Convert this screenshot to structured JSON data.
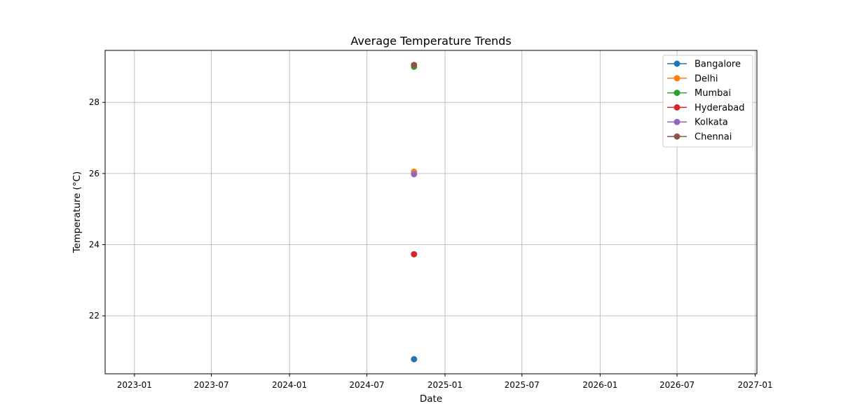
{
  "chart_data": {
    "type": "line",
    "title": "Average Temperature Trends",
    "xlabel": "Date",
    "ylabel": "Temperature (°C)",
    "x_ticks": [
      "2023-01",
      "2023-07",
      "2024-01",
      "2024-07",
      "2025-01",
      "2025-07",
      "2026-01",
      "2026-07",
      "2027-01"
    ],
    "y_ticks": [
      "22",
      "24",
      "26",
      "28"
    ],
    "xlim": [
      "2022-10-24",
      "2027-01-05"
    ],
    "ylim": [
      20.37,
      29.46
    ],
    "grid": true,
    "legend_position": "top-right",
    "series": [
      {
        "name": "Bangalore",
        "color": "#1f77b4",
        "points": [
          {
            "x": "2024-10-20",
            "y": 20.78
          }
        ]
      },
      {
        "name": "Delhi",
        "color": "#ff7f0e",
        "points": [
          {
            "x": "2024-10-20",
            "y": 26.05
          }
        ]
      },
      {
        "name": "Mumbai",
        "color": "#2ca02c",
        "points": [
          {
            "x": "2024-10-20",
            "y": 29.0
          }
        ]
      },
      {
        "name": "Hyderabad",
        "color": "#d62728",
        "points": [
          {
            "x": "2024-10-20",
            "y": 23.73
          }
        ]
      },
      {
        "name": "Kolkata",
        "color": "#9467bd",
        "points": [
          {
            "x": "2024-10-20",
            "y": 25.98
          }
        ]
      },
      {
        "name": "Chennai",
        "color": "#8c564b",
        "points": [
          {
            "x": "2024-10-20",
            "y": 29.05
          }
        ]
      }
    ]
  }
}
